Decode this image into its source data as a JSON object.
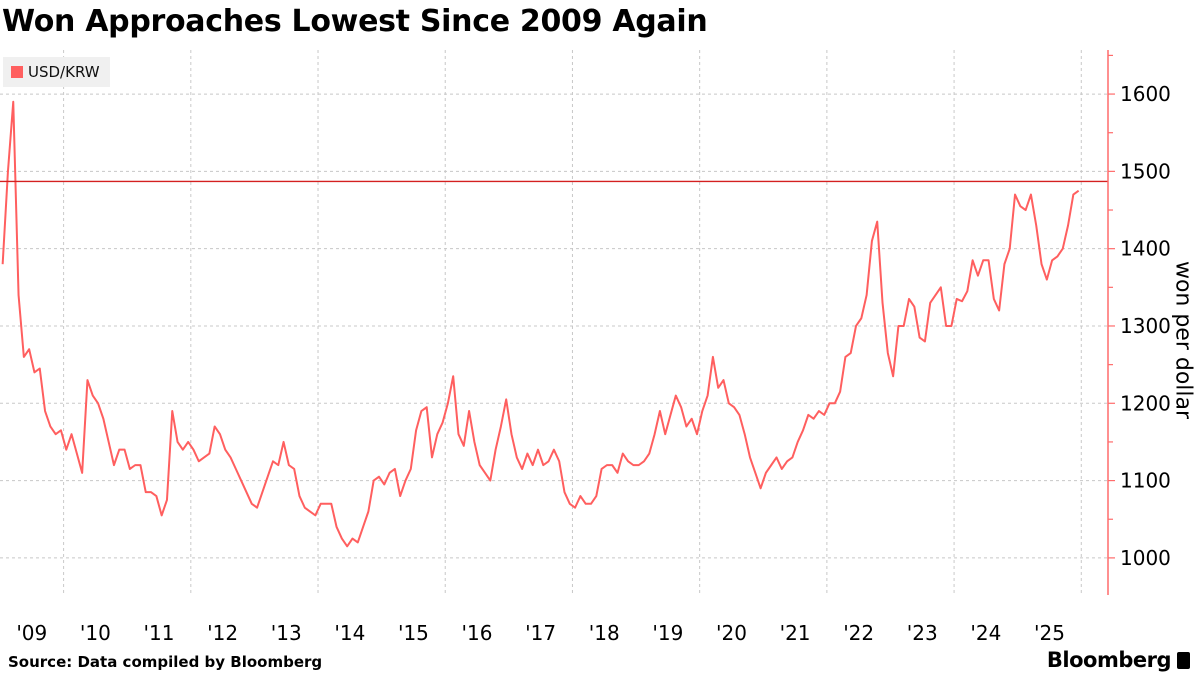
{
  "title": "Won Approaches Lowest Since 2009 Again",
  "source": "Source: Data compiled by Bloomberg",
  "brand": "Bloomberg",
  "chart_data": {
    "type": "line",
    "title": "Won Approaches Lowest Since 2009 Again",
    "ylabel": "won per dollar",
    "xlabel": "",
    "legend": {
      "position": "top-left",
      "entries": [
        "USD/KRW"
      ]
    },
    "series": [
      {
        "name": "USD/KRW",
        "color": "#ff5f5f",
        "frequency": "monthly (approx.)",
        "values_by_year": {
          "2009": [
            1380,
            1500,
            1590,
            1340,
            1260,
            1270,
            1240,
            1245,
            1190,
            1170,
            1160,
            1165
          ],
          "2010": [
            1140,
            1160,
            1135,
            1110,
            1230,
            1210,
            1200,
            1180,
            1150,
            1120,
            1140,
            1140
          ],
          "2011": [
            1115,
            1120,
            1120,
            1085,
            1085,
            1080,
            1055,
            1075,
            1190,
            1150,
            1140,
            1150
          ],
          "2012": [
            1140,
            1125,
            1130,
            1135,
            1170,
            1160,
            1140,
            1130,
            1115,
            1100,
            1085,
            1070
          ],
          "2013": [
            1065,
            1085,
            1105,
            1125,
            1120,
            1150,
            1120,
            1115,
            1080,
            1065,
            1060,
            1055
          ],
          "2014": [
            1070,
            1070,
            1070,
            1040,
            1025,
            1015,
            1025,
            1020,
            1040,
            1060,
            1100,
            1105
          ],
          "2015": [
            1095,
            1110,
            1115,
            1080,
            1100,
            1115,
            1165,
            1190,
            1195,
            1130,
            1160,
            1175
          ],
          "2016": [
            1200,
            1235,
            1160,
            1145,
            1190,
            1150,
            1120,
            1110,
            1100,
            1140,
            1170,
            1205
          ],
          "2017": [
            1160,
            1130,
            1115,
            1135,
            1120,
            1140,
            1120,
            1125,
            1140,
            1125,
            1085,
            1070
          ],
          "2018": [
            1065,
            1080,
            1070,
            1070,
            1080,
            1115,
            1120,
            1120,
            1110,
            1135,
            1125,
            1120
          ],
          "2019": [
            1120,
            1125,
            1135,
            1160,
            1190,
            1160,
            1185,
            1210,
            1195,
            1170,
            1180,
            1160
          ],
          "2020": [
            1190,
            1210,
            1260,
            1220,
            1230,
            1200,
            1195,
            1185,
            1160,
            1130,
            1110,
            1090
          ],
          "2021": [
            1110,
            1120,
            1130,
            1115,
            1125,
            1130,
            1150,
            1165,
            1185,
            1180,
            1190,
            1185
          ],
          "2022": [
            1200,
            1200,
            1215,
            1260,
            1265,
            1300,
            1310,
            1340,
            1410,
            1435,
            1330,
            1265
          ],
          "2023": [
            1235,
            1300,
            1300,
            1335,
            1325,
            1285,
            1280,
            1330,
            1340,
            1350,
            1300,
            1300
          ],
          "2024": [
            1335,
            1332,
            1345,
            1385,
            1365,
            1385,
            1385,
            1335,
            1320,
            1380,
            1400,
            1470
          ],
          "2025": [
            1455,
            1450,
            1470,
            1430,
            1380,
            1360,
            1385,
            1390,
            1400,
            1430,
            1470,
            1475
          ]
        }
      }
    ],
    "reference_line": {
      "value": 1487,
      "color": "#d42020"
    },
    "x_ticks": [
      "'09",
      "'10",
      "'11",
      "'12",
      "'13",
      "'14",
      "'15",
      "'16",
      "'17",
      "'18",
      "'19",
      "'20",
      "'21",
      "'22",
      "'23",
      "'24",
      "'25"
    ],
    "y_ticks": [
      1000,
      1100,
      1200,
      1300,
      1400,
      1500,
      1600
    ],
    "xlim": [
      "2009-01",
      "2026-06"
    ],
    "ylim": [
      952,
      1657
    ],
    "grid": true,
    "axis_color": "#ff6b6b",
    "y_axis_side": "right"
  }
}
